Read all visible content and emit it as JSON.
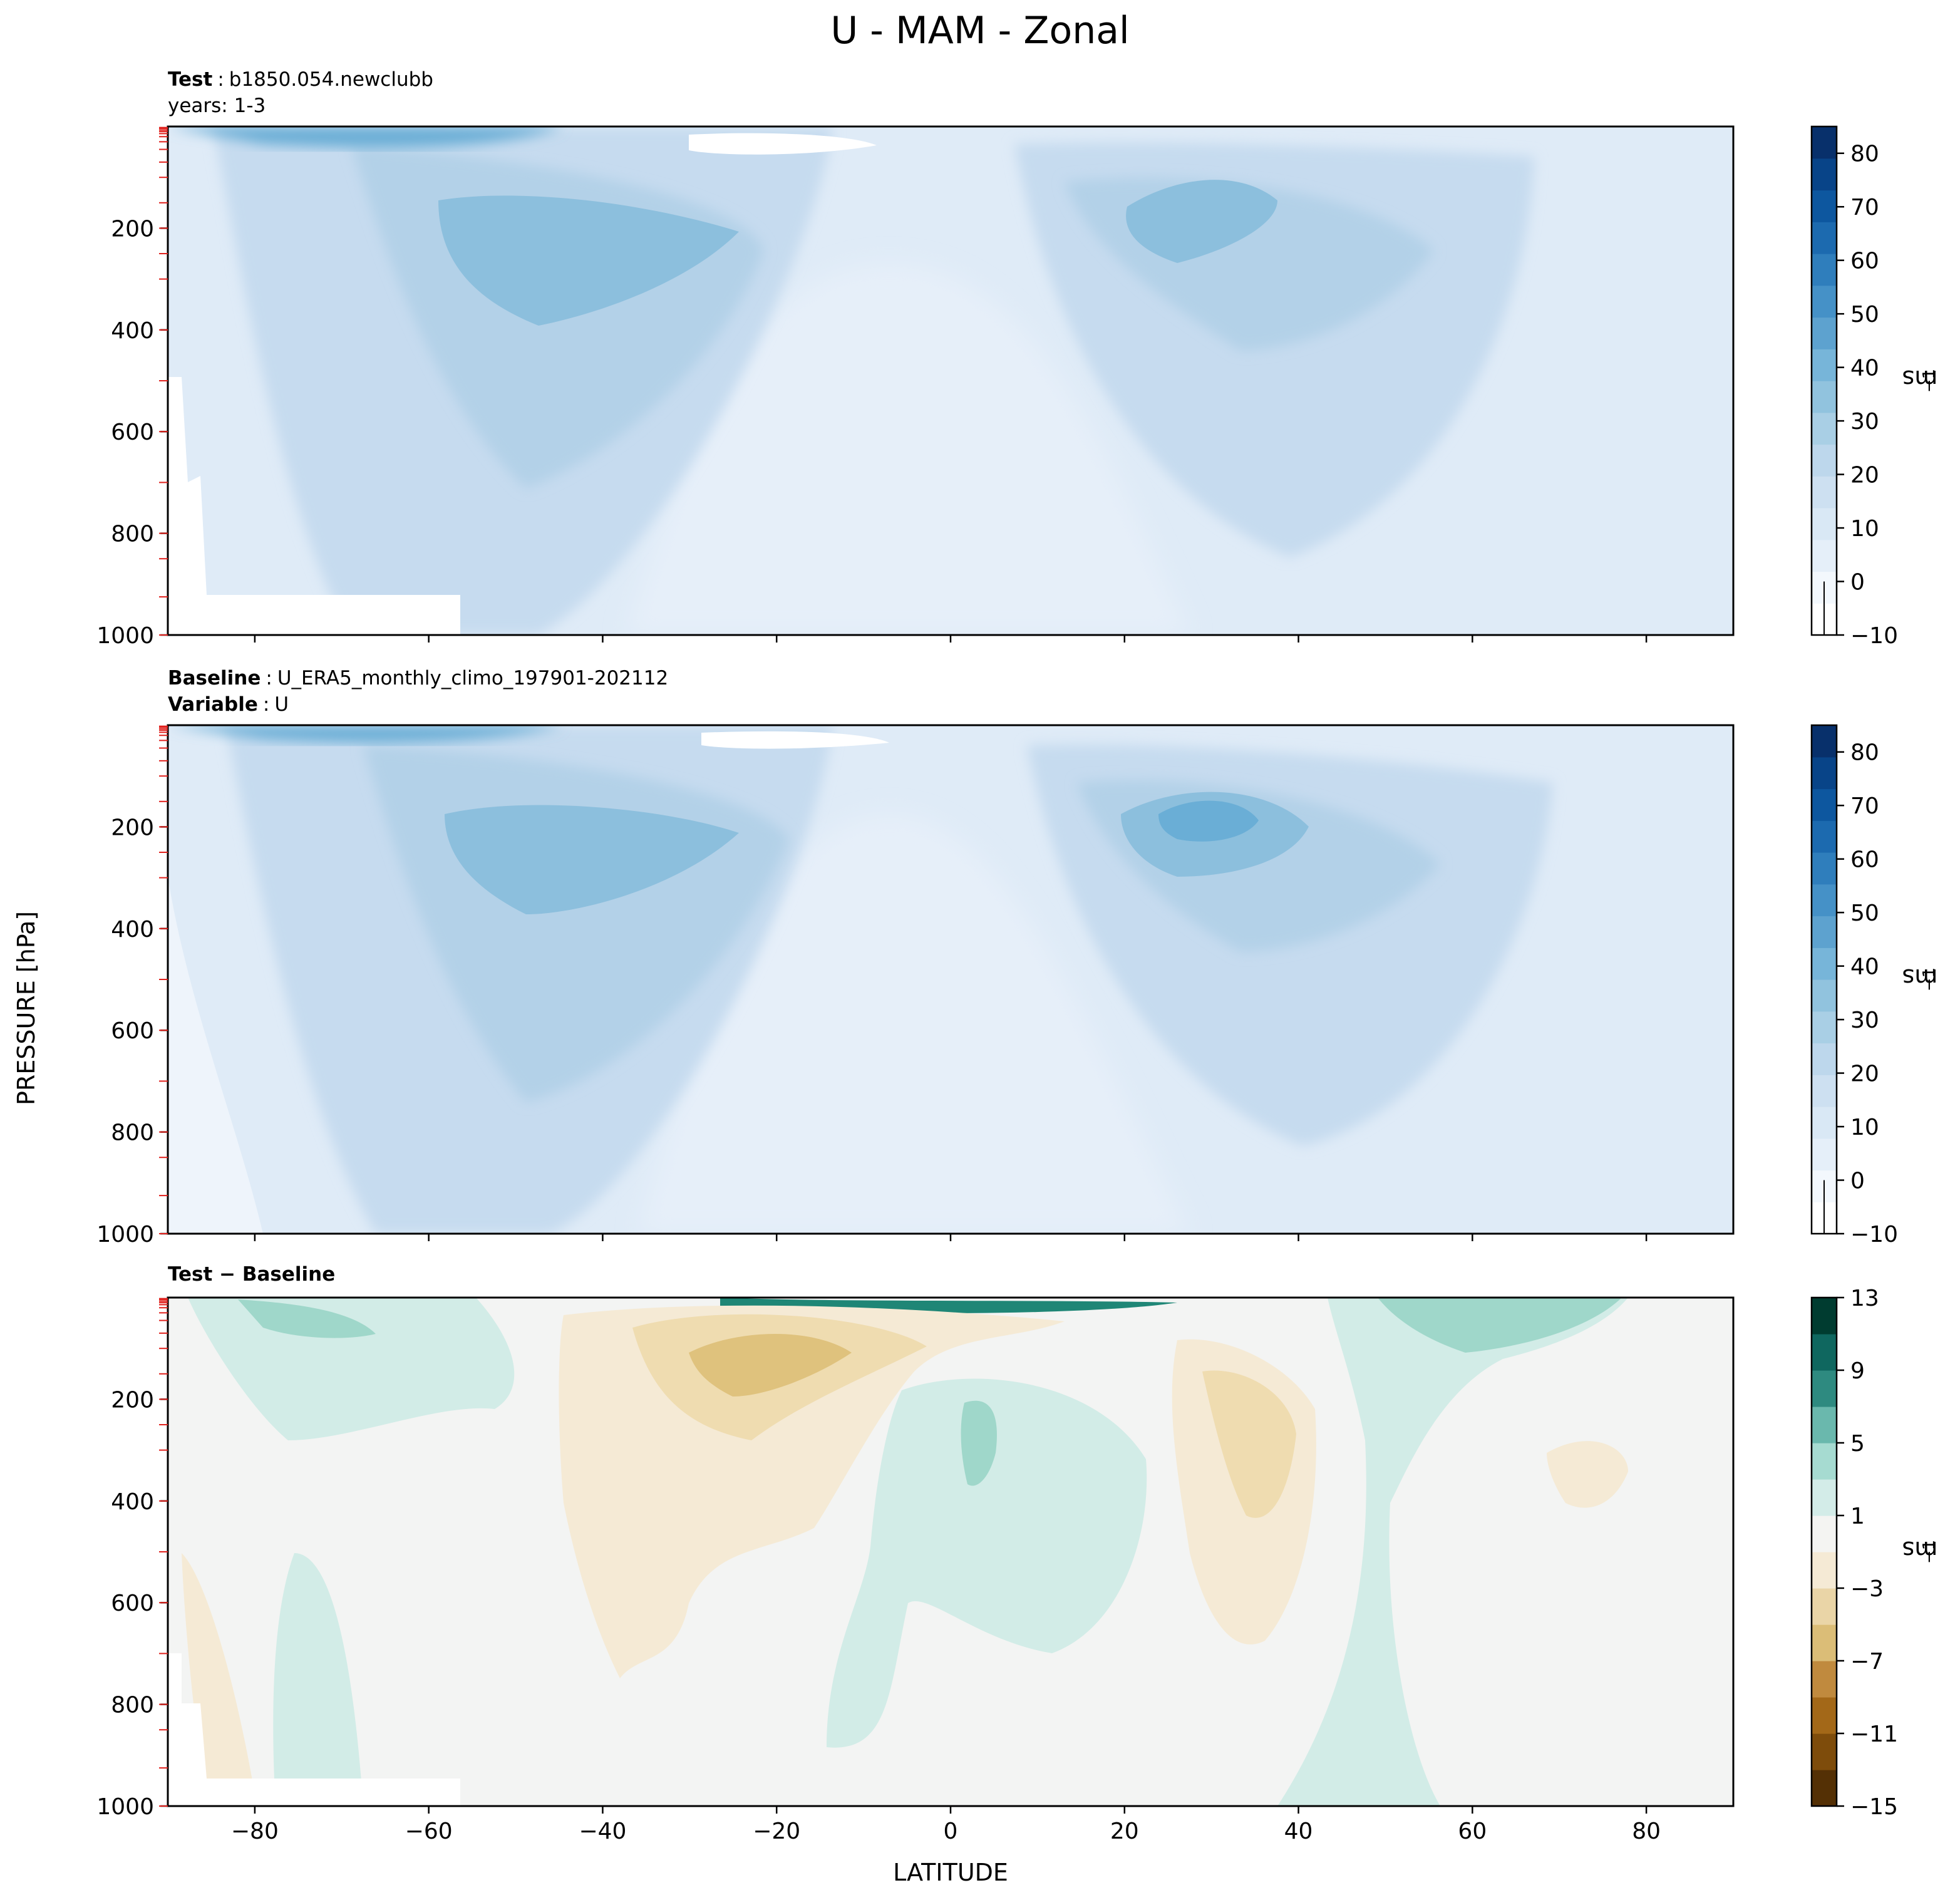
{
  "chart_data": {
    "type": "contourf",
    "title": "U - MAM - Zonal",
    "xlabel": "LATITUDE",
    "ylabel": "PRESSURE [hPa]",
    "xlim": [
      -90,
      90
    ],
    "ylim": [
      1000,
      0
    ],
    "x_ticks": [
      -80,
      -60,
      -40,
      -20,
      0,
      20,
      40,
      60,
      80
    ],
    "y_ticks": [
      200,
      400,
      600,
      800,
      1000
    ],
    "panels": [
      {
        "id": "test",
        "subtitle_lines": [
          {
            "key": "Test",
            "value": "b1850.054.newclubb"
          },
          {
            "key": "",
            "value": "years: 1-3"
          }
        ],
        "units": "ms",
        "units_exp": "−1",
        "colorbar_ticks": [
          "80",
          "70",
          "60",
          "50",
          "40",
          "30",
          "20",
          "10",
          "0",
          "−10"
        ],
        "colorbar_range": [
          -10,
          85
        ],
        "jets": [
          {
            "lat": -52,
            "pressure": 230,
            "max": 34
          },
          {
            "lat": 30,
            "pressure": 200,
            "max": 36
          }
        ],
        "colors": {
          "bg": "#dfebf7",
          "mid": "#c6dbef",
          "core": "#6aaed6",
          "top": "#4292c6"
        }
      },
      {
        "id": "baseline",
        "subtitle_lines": [
          {
            "key": "Baseline",
            "value": "U_ERA5_monthly_climo_197901-202112"
          },
          {
            "key": "Variable",
            "value": "U"
          }
        ],
        "units": "ms",
        "units_exp": "−1",
        "colorbar_ticks": [
          "80",
          "70",
          "60",
          "50",
          "40",
          "30",
          "20",
          "10",
          "0",
          "−10"
        ],
        "colorbar_range": [
          -10,
          85
        ],
        "jets": [
          {
            "lat": -50,
            "pressure": 240,
            "max": 33
          },
          {
            "lat": 30,
            "pressure": 200,
            "max": 38
          }
        ],
        "colors": {
          "bg": "#dfebf7",
          "mid": "#c6dbef",
          "core": "#6aaed6",
          "top": "#4292c6"
        }
      },
      {
        "id": "diff",
        "subtitle_lines": [
          {
            "key": "Test − Baseline",
            "value": ""
          }
        ],
        "units": "ms",
        "units_exp": "−1",
        "colorbar_ticks": [
          "13",
          "9",
          "5",
          "1",
          "−3",
          "−7",
          "−11",
          "−15"
        ],
        "colorbar_range": [
          -15,
          13
        ],
        "colors": {
          "neutral": "#f3f4f3",
          "pos1": "#d2ece7",
          "pos2": "#9fd7ca",
          "pos3": "#1f8676",
          "neg1": "#f5ead5",
          "neg2": "#efdcb0",
          "neg3": "#dfc27d"
        }
      }
    ]
  }
}
